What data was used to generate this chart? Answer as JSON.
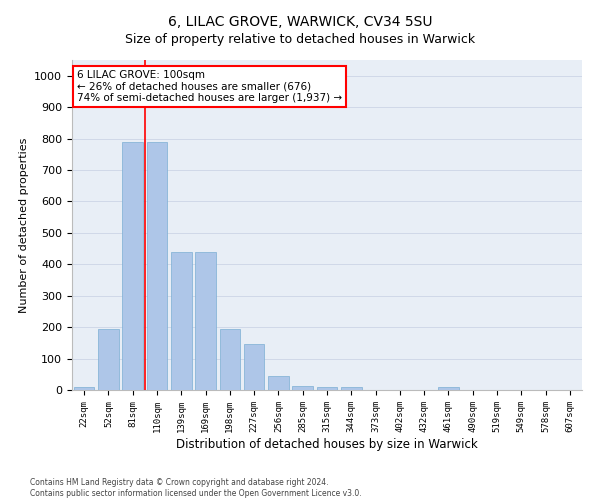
{
  "title": "6, LILAC GROVE, WARWICK, CV34 5SU",
  "subtitle": "Size of property relative to detached houses in Warwick",
  "xlabel": "Distribution of detached houses by size in Warwick",
  "ylabel": "Number of detached properties",
  "categories": [
    "22sqm",
    "52sqm",
    "81sqm",
    "110sqm",
    "139sqm",
    "169sqm",
    "198sqm",
    "227sqm",
    "256sqm",
    "285sqm",
    "315sqm",
    "344sqm",
    "373sqm",
    "402sqm",
    "432sqm",
    "461sqm",
    "490sqm",
    "519sqm",
    "549sqm",
    "578sqm",
    "607sqm"
  ],
  "values": [
    10,
    193,
    790,
    790,
    440,
    440,
    195,
    145,
    45,
    13,
    10,
    8,
    0,
    0,
    0,
    8,
    0,
    0,
    0,
    0,
    0
  ],
  "bar_color": "#aec6e8",
  "bar_edge_color": "#7bafd4",
  "grid_color": "#d0d8e8",
  "background_color": "#e8eef6",
  "vline_color": "red",
  "vline_pos": 2.5,
  "annotation_text": "6 LILAC GROVE: 100sqm\n← 26% of detached houses are smaller (676)\n74% of semi-detached houses are larger (1,937) →",
  "annotation_box_color": "white",
  "annotation_box_edge_color": "red",
  "ylim": [
    0,
    1050
  ],
  "yticks": [
    0,
    100,
    200,
    300,
    400,
    500,
    600,
    700,
    800,
    900,
    1000
  ],
  "footer_line1": "Contains HM Land Registry data © Crown copyright and database right 2024.",
  "footer_line2": "Contains public sector information licensed under the Open Government Licence v3.0."
}
